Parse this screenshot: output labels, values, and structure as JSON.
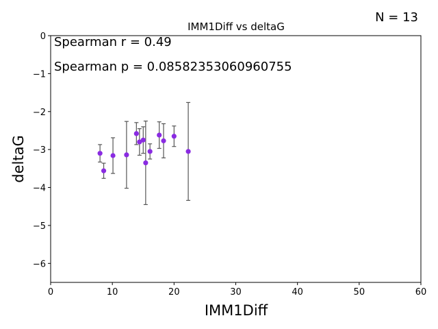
{
  "chart_data": {
    "type": "scatter",
    "title": "IMM1Diff vs deltaG",
    "xlabel": "IMM1Diff",
    "ylabel": "deltaG",
    "xlim": [
      0,
      60
    ],
    "ylim": [
      -6.5,
      0
    ],
    "xticks": [
      0,
      10,
      20,
      30,
      40,
      50,
      60
    ],
    "yticks": [
      0,
      -1,
      -2,
      -3,
      -4,
      -5,
      -6
    ],
    "xtick_labels": [
      "0",
      "10",
      "20",
      "30",
      "40",
      "50",
      "60"
    ],
    "ytick_labels": [
      "0",
      "−1",
      "−2",
      "−3",
      "−4",
      "−5",
      "−6"
    ],
    "grid": false,
    "point_color": "#8a2be2",
    "errorbar_color": "#555555",
    "points": [
      {
        "x": 8.0,
        "y": -3.1,
        "err": 0.23
      },
      {
        "x": 8.6,
        "y": -3.56,
        "err": 0.2
      },
      {
        "x": 10.1,
        "y": -3.16,
        "err": 0.47
      },
      {
        "x": 12.3,
        "y": -3.14,
        "err": 0.88
      },
      {
        "x": 13.9,
        "y": -2.58,
        "err": 0.29
      },
      {
        "x": 14.4,
        "y": -2.8,
        "err": 0.35
      },
      {
        "x": 15.0,
        "y": -2.75,
        "err": 0.35
      },
      {
        "x": 15.4,
        "y": -3.35,
        "err": 1.1
      },
      {
        "x": 16.1,
        "y": -3.05,
        "err": 0.2
      },
      {
        "x": 17.6,
        "y": -2.62,
        "err": 0.35
      },
      {
        "x": 18.3,
        "y": -2.77,
        "err": 0.45
      },
      {
        "x": 20.0,
        "y": -2.65,
        "err": 0.27
      },
      {
        "x": 22.3,
        "y": -3.05,
        "err": 1.29
      }
    ],
    "annotations": {
      "spearman_r": "Spearman r = 0.49",
      "spearman_p": "Spearman p = 0.08582353060960755",
      "n": "N = 13"
    }
  }
}
